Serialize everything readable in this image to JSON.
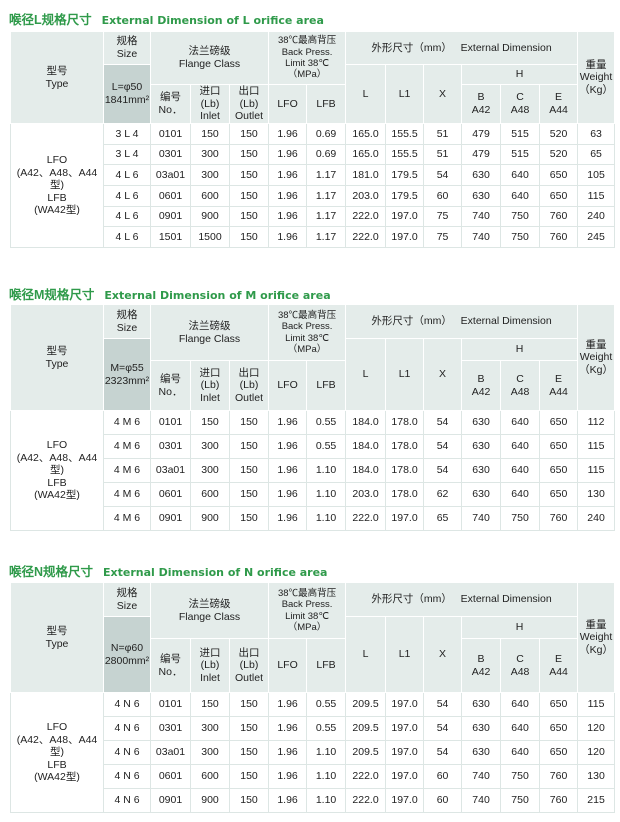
{
  "header_labels": {
    "type_cn": "型号",
    "type_en": "Type",
    "size_cn": "规格",
    "size_en": "Size",
    "flange_cn": "法兰磅级",
    "flange_en": "Flange  Class",
    "back_cn": "38℃最高背压",
    "back_en": "Back Press.",
    "back_limit": "Limit 38℃",
    "back_unit": "（MPa）",
    "ext_cn": "外形尺寸（mm）",
    "ext_en": "External Dimension",
    "weight_cn": "重量",
    "weight_en": "Weight",
    "weight_unit": "（Kg）",
    "no_cn": "编号",
    "no_en": "No．",
    "inlet_cn": "进口(Lb)",
    "inlet_en": "Inlet",
    "outlet_cn": "出口(Lb)",
    "outlet_en": "Outlet",
    "lfo": "LFO",
    "lfb": "LFB",
    "L": "L",
    "L1": "L1",
    "X": "X",
    "H": "H",
    "B": "B",
    "B_sub": "A42",
    "C": "C",
    "C_sub": "A48",
    "E": "E",
    "E_sub": "A44"
  },
  "type_groups": [
    {
      "name": "LFO",
      "sub": "(A42、A48、A44型)"
    },
    {
      "name": "LFB",
      "sub": "(WA42型)"
    }
  ],
  "sections": [
    {
      "title_cn": "喉径L规格尺寸",
      "title_en": "External Dimension of L orifice area",
      "size_value": "L=φ50",
      "size_area": "1841mm²",
      "rows": [
        [
          "3 L 4",
          "0101",
          "150",
          "150",
          "1.96",
          "0.69",
          "165.0",
          "155.5",
          "51",
          "479",
          "515",
          "520",
          "63"
        ],
        [
          "3 L 4",
          "0301",
          "300",
          "150",
          "1.96",
          "0.69",
          "165.0",
          "155.5",
          "51",
          "479",
          "515",
          "520",
          "65"
        ],
        [
          "4 L 6",
          "03a01",
          "300",
          "150",
          "1.96",
          "1.17",
          "181.0",
          "179.5",
          "54",
          "630",
          "640",
          "650",
          "105"
        ],
        [
          "4 L 6",
          "0601",
          "600",
          "150",
          "1.96",
          "1.17",
          "203.0",
          "179.5",
          "60",
          "630",
          "640",
          "650",
          "115"
        ],
        [
          "4 L 6",
          "0901",
          "900",
          "150",
          "1.96",
          "1.17",
          "222.0",
          "197.0",
          "75",
          "740",
          "750",
          "760",
          "240"
        ],
        [
          "4 L 6",
          "1501",
          "1500",
          "150",
          "1.96",
          "1.17",
          "222.0",
          "197.0",
          "75",
          "740",
          "750",
          "760",
          "245"
        ]
      ]
    },
    {
      "title_cn": "喉径M规格尺寸",
      "title_en": "External Dimension of M orifice area",
      "size_value": "M=φ55",
      "size_area": "2323mm²",
      "rows": [
        [
          "4 M 6",
          "0101",
          "150",
          "150",
          "1.96",
          "0.55",
          "184.0",
          "178.0",
          "54",
          "630",
          "640",
          "650",
          "112"
        ],
        [
          "4 M 6",
          "0301",
          "300",
          "150",
          "1.96",
          "0.55",
          "184.0",
          "178.0",
          "54",
          "630",
          "640",
          "650",
          "115"
        ],
        [
          "4 M 6",
          "03a01",
          "300",
          "150",
          "1.96",
          "1.10",
          "184.0",
          "178.0",
          "54",
          "630",
          "640",
          "650",
          "115"
        ],
        [
          "4 M 6",
          "0601",
          "600",
          "150",
          "1.96",
          "1.10",
          "203.0",
          "178.0",
          "62",
          "630",
          "640",
          "650",
          "130"
        ],
        [
          "4 M 6",
          "0901",
          "900",
          "150",
          "1.96",
          "1.10",
          "222.0",
          "197.0",
          "65",
          "740",
          "750",
          "760",
          "240"
        ]
      ]
    },
    {
      "title_cn": "喉径N规格尺寸",
      "title_en": "External Dimension of N orifice area",
      "size_value": "N=φ60",
      "size_area": "2800mm²",
      "rows": [
        [
          "4 N 6",
          "0101",
          "150",
          "150",
          "1.96",
          "0.55",
          "209.5",
          "197.0",
          "54",
          "630",
          "640",
          "650",
          "115"
        ],
        [
          "4 N 6",
          "0301",
          "300",
          "150",
          "1.96",
          "0.55",
          "209.5",
          "197.0",
          "54",
          "630",
          "640",
          "650",
          "120"
        ],
        [
          "4 N 6",
          "03a01",
          "300",
          "150",
          "1.96",
          "1.10",
          "209.5",
          "197.0",
          "54",
          "630",
          "640",
          "650",
          "120"
        ],
        [
          "4 N 6",
          "0601",
          "600",
          "150",
          "1.96",
          "1.10",
          "222.0",
          "197.0",
          "60",
          "740",
          "750",
          "760",
          "130"
        ],
        [
          "4 N 6",
          "0901",
          "900",
          "150",
          "1.96",
          "1.10",
          "222.0",
          "197.0",
          "60",
          "740",
          "750",
          "760",
          "215"
        ]
      ]
    }
  ],
  "colors": {
    "title": "#2f9a4a",
    "header_bg": "#e4ecea",
    "size_bg": "#c6d3d1"
  }
}
